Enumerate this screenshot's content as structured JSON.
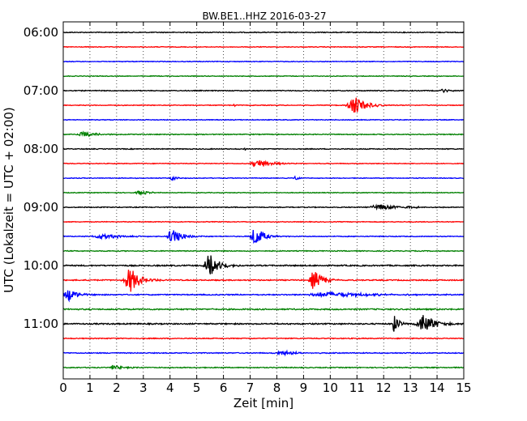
{
  "chart_data": {
    "type": "line",
    "title": "BW.BE1..HHZ 2016-03-27",
    "xlabel": "Zeit  [min]",
    "ylabel": "UTC (Lokalzeit = UTC + 02:00)",
    "xlim": [
      0,
      15
    ],
    "x_ticks": [
      "0",
      "1",
      "2",
      "3",
      "4",
      "5",
      "6",
      "7",
      "8",
      "9",
      "10",
      "11",
      "12",
      "13",
      "14",
      "15"
    ],
    "y_tick_labels": [
      "06:00",
      "07:00",
      "08:00",
      "09:00",
      "10:00",
      "11:00"
    ],
    "grid": "vertical dotted at each minute",
    "trace_interval_minutes": 15,
    "colors": {
      "cycle": [
        "#000000",
        "#ff0000",
        "#0000ff",
        "#008000"
      ],
      "grid": "#000000",
      "frame": "#000000"
    },
    "series": [
      {
        "start": "06:00",
        "noise": 1.0,
        "events": []
      },
      {
        "start": "06:15",
        "noise": 0.8,
        "events": []
      },
      {
        "start": "06:30",
        "noise": 0.8,
        "events": []
      },
      {
        "start": "06:45",
        "noise": 0.8,
        "events": []
      },
      {
        "start": "07:00",
        "noise": 1.0,
        "events": [
          {
            "t": 14.2,
            "amp": 2.5,
            "dur": 0.2
          }
        ]
      },
      {
        "start": "07:15",
        "noise": 0.8,
        "events": [
          {
            "t": 6.4,
            "amp": 2.0,
            "dur": 0.05
          },
          {
            "t": 10.9,
            "amp": 12,
            "dur": 0.4
          }
        ]
      },
      {
        "start": "07:30",
        "noise": 0.8,
        "events": []
      },
      {
        "start": "07:45",
        "noise": 1.0,
        "events": [
          {
            "t": 0.8,
            "amp": 3,
            "dur": 0.5
          }
        ]
      },
      {
        "start": "08:00",
        "noise": 1.0,
        "events": [
          {
            "t": 6.8,
            "amp": 2.5,
            "dur": 0.05
          }
        ]
      },
      {
        "start": "08:15",
        "noise": 0.8,
        "events": [
          {
            "t": 7.3,
            "amp": 5,
            "dur": 0.5
          }
        ]
      },
      {
        "start": "08:30",
        "noise": 0.8,
        "events": [
          {
            "t": 4.1,
            "amp": 2.5,
            "dur": 0.2
          },
          {
            "t": 8.7,
            "amp": 2.5,
            "dur": 0.15
          }
        ]
      },
      {
        "start": "08:45",
        "noise": 0.8,
        "events": [
          {
            "t": 2.9,
            "amp": 3,
            "dur": 0.3
          }
        ]
      },
      {
        "start": "09:00",
        "noise": 1.0,
        "events": [
          {
            "t": 11.9,
            "amp": 3,
            "dur": 0.9
          }
        ]
      },
      {
        "start": "09:15",
        "noise": 0.8,
        "events": []
      },
      {
        "start": "09:30",
        "noise": 1.0,
        "events": [
          {
            "t": 1.5,
            "amp": 3,
            "dur": 0.7
          },
          {
            "t": 4.1,
            "amp": 10,
            "dur": 0.35
          },
          {
            "t": 7.2,
            "amp": 12,
            "dur": 0.3
          }
        ]
      },
      {
        "start": "09:45",
        "noise": 1.0,
        "events": []
      },
      {
        "start": "10:00",
        "noise": 1.5,
        "events": [
          {
            "t": 5.5,
            "amp": 14,
            "dur": 0.35
          }
        ]
      },
      {
        "start": "10:15",
        "noise": 1.3,
        "events": [
          {
            "t": 2.5,
            "amp": 16,
            "dur": 0.35
          },
          {
            "t": 9.4,
            "amp": 12,
            "dur": 0.3
          }
        ]
      },
      {
        "start": "10:30",
        "noise": 1.3,
        "events": [
          {
            "t": 0.2,
            "amp": 8,
            "dur": 0.3
          },
          {
            "t": 10.0,
            "amp": 3,
            "dur": 1.5
          }
        ]
      },
      {
        "start": "10:45",
        "noise": 1.5,
        "events": []
      },
      {
        "start": "11:00",
        "noise": 1.5,
        "events": [
          {
            "t": 12.4,
            "amp": 12,
            "dur": 0.15
          },
          {
            "t": 13.5,
            "amp": 13,
            "dur": 0.4
          }
        ]
      },
      {
        "start": "11:15",
        "noise": 1.1,
        "events": []
      },
      {
        "start": "11:30",
        "noise": 1.1,
        "events": [
          {
            "t": 8.2,
            "amp": 3,
            "dur": 0.5
          }
        ]
      },
      {
        "start": "11:45",
        "noise": 1.1,
        "events": [
          {
            "t": 1.9,
            "amp": 3,
            "dur": 0.3
          }
        ]
      }
    ]
  }
}
